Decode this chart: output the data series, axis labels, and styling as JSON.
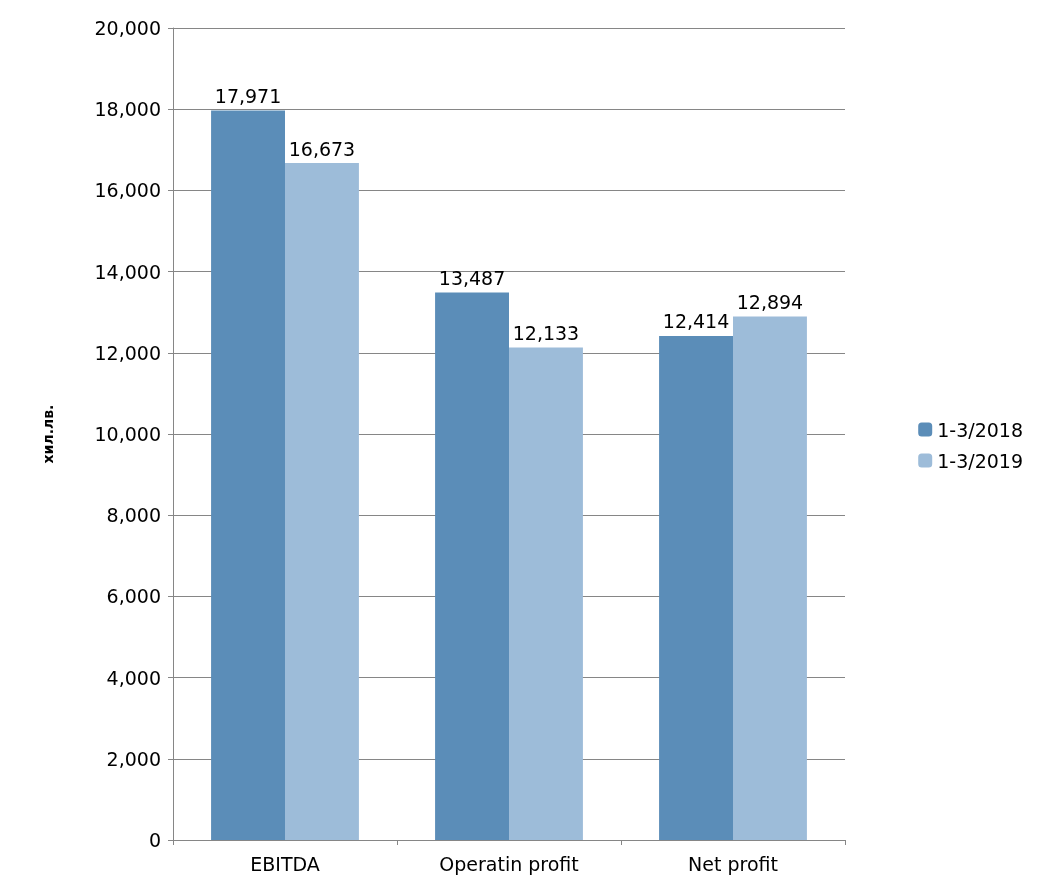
{
  "chart_data": {
    "type": "bar",
    "ylabel": "хил.лв.",
    "categories": [
      "EBITDA",
      "Operatin profit",
      "Net profit"
    ],
    "series": [
      {
        "name": "1-3/2018",
        "color": "#5b8db8",
        "values": [
          17971,
          13487,
          12414
        ],
        "value_labels": [
          "17,971",
          "13,487",
          "12,414"
        ]
      },
      {
        "name": "1-3/2019",
        "color": "#9dbcd9",
        "values": [
          16673,
          12133,
          12894
        ],
        "value_labels": [
          "16,673",
          "12,133",
          "12,894"
        ]
      }
    ],
    "ylim": [
      0,
      20000
    ],
    "yticks": [
      {
        "value": 0,
        "label": "0"
      },
      {
        "value": 2000,
        "label": "2,000"
      },
      {
        "value": 4000,
        "label": "4,000"
      },
      {
        "value": 6000,
        "label": "6,000"
      },
      {
        "value": 8000,
        "label": "8,000"
      },
      {
        "value": 10000,
        "label": "10,000"
      },
      {
        "value": 12000,
        "label": "12,000"
      },
      {
        "value": 14000,
        "label": "14,000"
      },
      {
        "value": 16000,
        "label": "16,000"
      },
      {
        "value": 18000,
        "label": "18,000"
      },
      {
        "value": 20000,
        "label": "20,000"
      }
    ],
    "grid": "y",
    "legend": "right"
  }
}
